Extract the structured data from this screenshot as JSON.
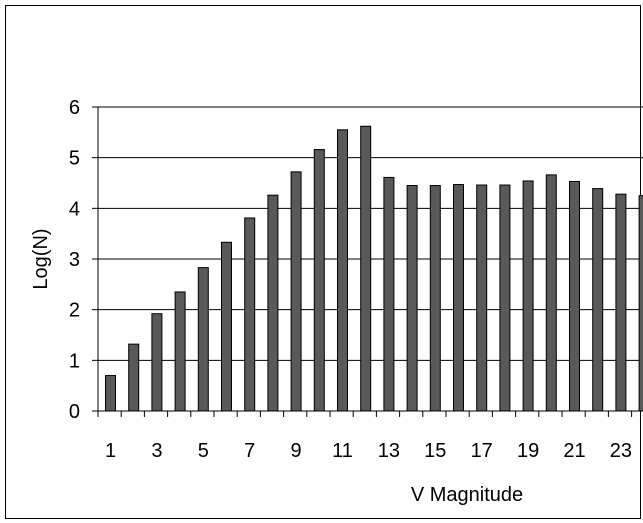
{
  "chart_data": {
    "type": "bar",
    "xlabel": "V Magnitude",
    "ylabel": "Log(N)",
    "ylim": [
      0,
      6
    ],
    "yticks": [
      0,
      1,
      2,
      3,
      4,
      5,
      6
    ],
    "grid": true,
    "legend": "none",
    "categories": [
      "1",
      "2",
      "3",
      "4",
      "5",
      "6",
      "7",
      "8",
      "9",
      "10",
      "11",
      "12",
      "13",
      "14",
      "15",
      "16",
      "17",
      "18",
      "19",
      "20",
      "21",
      "22",
      "23",
      "24"
    ],
    "x_tick_labels": [
      "1",
      "3",
      "5",
      "7",
      "9",
      "11",
      "13",
      "15",
      "17",
      "19",
      "21",
      "23"
    ],
    "values": [
      0.7,
      1.32,
      1.92,
      2.35,
      2.83,
      3.33,
      3.81,
      4.26,
      4.72,
      5.16,
      5.55,
      5.62,
      4.61,
      4.45,
      4.45,
      4.47,
      4.46,
      4.46,
      4.54,
      4.66,
      4.53,
      4.39,
      4.28,
      4.25
    ],
    "bar_color": "#595959",
    "bar_border_color": "#000000"
  }
}
